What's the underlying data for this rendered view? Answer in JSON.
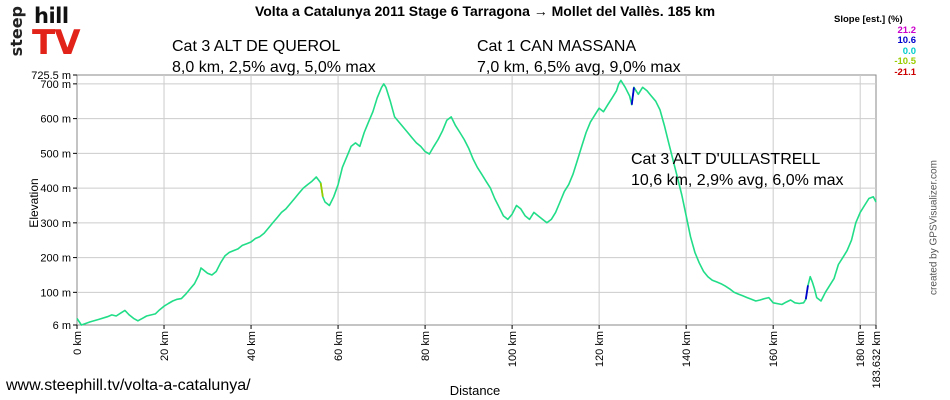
{
  "chart_data": {
    "type": "line",
    "title": "Volta a Catalunya 2011 Stage 6  Tarragona → Mollet del Vallès. 185 km",
    "xlabel": "Distance",
    "ylabel": "Elevation",
    "xlim": [
      0,
      183.632
    ],
    "ylim": [
      6,
      725.5
    ],
    "x_tick_labels": [
      "0 km",
      "20 km",
      "40 km",
      "60 km",
      "80 km",
      "100 km",
      "120 km",
      "140 km",
      "160 km",
      "180 km",
      "183.632 km"
    ],
    "y_tick_labels": [
      "725.5 m",
      "700 m",
      "600 m",
      "500 m",
      "400 m",
      "300 m",
      "200 m",
      "100 m",
      "6 m"
    ],
    "grid": true,
    "legend_position": "top-right",
    "legend": {
      "title": "Slope [est.] (%)",
      "entries": [
        {
          "label": "21.2",
          "color": "#cc00cc"
        },
        {
          "label": "10.6",
          "color": "#0000cc"
        },
        {
          "label": "0.0",
          "color": "#00cccc"
        },
        {
          "label": "-10.5",
          "color": "#99cc00"
        },
        {
          "label": "-21.1",
          "color": "#cc0000"
        }
      ]
    },
    "series": [
      {
        "points": [
          [
            0,
            25
          ],
          [
            1,
            6
          ],
          [
            3,
            15
          ],
          [
            5,
            22
          ],
          [
            7,
            30
          ],
          [
            8,
            35
          ],
          [
            9,
            32
          ],
          [
            10,
            40
          ],
          [
            11,
            48
          ],
          [
            12,
            35
          ],
          [
            13,
            25
          ],
          [
            14,
            18
          ],
          [
            15,
            25
          ],
          [
            16,
            32
          ],
          [
            18,
            38
          ],
          [
            19,
            50
          ],
          [
            20,
            60
          ],
          [
            21,
            68
          ],
          [
            22,
            75
          ],
          [
            23,
            80
          ],
          [
            24,
            82
          ],
          [
            25,
            95
          ],
          [
            26,
            110
          ],
          [
            27,
            125
          ],
          [
            28,
            150
          ],
          [
            28.5,
            170
          ],
          [
            29,
            165
          ],
          [
            30,
            155
          ],
          [
            31,
            150
          ],
          [
            32,
            160
          ],
          [
            33,
            185
          ],
          [
            34,
            205
          ],
          [
            35,
            215
          ],
          [
            36,
            220
          ],
          [
            37,
            225
          ],
          [
            38,
            235
          ],
          [
            39,
            240
          ],
          [
            40,
            245
          ],
          [
            41,
            255
          ],
          [
            42,
            260
          ],
          [
            43,
            270
          ],
          [
            44,
            285
          ],
          [
            45,
            300
          ],
          [
            46,
            315
          ],
          [
            47,
            330
          ],
          [
            48,
            340
          ],
          [
            49,
            355
          ],
          [
            50,
            370
          ],
          [
            51,
            385
          ],
          [
            52,
            400
          ],
          [
            53,
            410
          ],
          [
            54,
            420
          ],
          [
            55,
            432
          ],
          [
            56,
            415
          ],
          [
            56.5,
            375
          ],
          [
            57,
            360
          ],
          [
            58,
            350
          ],
          [
            59,
            375
          ],
          [
            60,
            410
          ],
          [
            61,
            460
          ],
          [
            62,
            490
          ],
          [
            63,
            520
          ],
          [
            64,
            530
          ],
          [
            65,
            520
          ],
          [
            66,
            560
          ],
          [
            67,
            590
          ],
          [
            68,
            620
          ],
          [
            69,
            660
          ],
          [
            70,
            690
          ],
          [
            70.5,
            700
          ],
          [
            71,
            690
          ],
          [
            72,
            650
          ],
          [
            73,
            605
          ],
          [
            74,
            590
          ],
          [
            75,
            575
          ],
          [
            76,
            560
          ],
          [
            77,
            545
          ],
          [
            78,
            530
          ],
          [
            79,
            520
          ],
          [
            80,
            505
          ],
          [
            81,
            498
          ],
          [
            82,
            520
          ],
          [
            83,
            540
          ],
          [
            84,
            565
          ],
          [
            85,
            595
          ],
          [
            86,
            605
          ],
          [
            87,
            580
          ],
          [
            88,
            560
          ],
          [
            89,
            540
          ],
          [
            90,
            515
          ],
          [
            91,
            485
          ],
          [
            92,
            460
          ],
          [
            93,
            440
          ],
          [
            94,
            420
          ],
          [
            95,
            400
          ],
          [
            96,
            370
          ],
          [
            97,
            345
          ],
          [
            98,
            320
          ],
          [
            99,
            310
          ],
          [
            100,
            325
          ],
          [
            101,
            350
          ],
          [
            102,
            340
          ],
          [
            103,
            320
          ],
          [
            104,
            310
          ],
          [
            105,
            330
          ],
          [
            106,
            320
          ],
          [
            107,
            310
          ],
          [
            108,
            300
          ],
          [
            109,
            310
          ],
          [
            110,
            330
          ],
          [
            111,
            360
          ],
          [
            112,
            390
          ],
          [
            113,
            410
          ],
          [
            114,
            440
          ],
          [
            115,
            480
          ],
          [
            116,
            520
          ],
          [
            117,
            560
          ],
          [
            118,
            590
          ],
          [
            119,
            610
          ],
          [
            120,
            630
          ],
          [
            121,
            620
          ],
          [
            122,
            640
          ],
          [
            123,
            660
          ],
          [
            124,
            680
          ],
          [
            124.5,
            700
          ],
          [
            125,
            710
          ],
          [
            126,
            690
          ],
          [
            127,
            665
          ],
          [
            127.5,
            640
          ],
          [
            128,
            690
          ],
          [
            128.5,
            680
          ],
          [
            129,
            670
          ],
          [
            130,
            690
          ],
          [
            131,
            680
          ],
          [
            132,
            665
          ],
          [
            133,
            650
          ],
          [
            134,
            625
          ],
          [
            135,
            580
          ],
          [
            136,
            530
          ],
          [
            137,
            480
          ],
          [
            138,
            430
          ],
          [
            139,
            380
          ],
          [
            140,
            320
          ],
          [
            141,
            260
          ],
          [
            142,
            215
          ],
          [
            143,
            185
          ],
          [
            144,
            160
          ],
          [
            145,
            145
          ],
          [
            146,
            135
          ],
          [
            147,
            130
          ],
          [
            148,
            125
          ],
          [
            149,
            118
          ],
          [
            150,
            110
          ],
          [
            151,
            100
          ],
          [
            152,
            95
          ],
          [
            153,
            90
          ],
          [
            154,
            85
          ],
          [
            155,
            80
          ],
          [
            156,
            75
          ],
          [
            157,
            78
          ],
          [
            158,
            82
          ],
          [
            159,
            85
          ],
          [
            160,
            70
          ],
          [
            162,
            65
          ],
          [
            163,
            72
          ],
          [
            164,
            78
          ],
          [
            165,
            70
          ],
          [
            166,
            68
          ],
          [
            167,
            70
          ],
          [
            167.5,
            80
          ],
          [
            168,
            120
          ],
          [
            168.5,
            145
          ],
          [
            169,
            130
          ],
          [
            169.5,
            110
          ],
          [
            170,
            85
          ],
          [
            171,
            75
          ],
          [
            172,
            100
          ],
          [
            173,
            120
          ],
          [
            174,
            140
          ],
          [
            175,
            180
          ],
          [
            176,
            200
          ],
          [
            177,
            220
          ],
          [
            178,
            250
          ],
          [
            179,
            300
          ],
          [
            180,
            330
          ],
          [
            181,
            350
          ],
          [
            182,
            370
          ],
          [
            183,
            375
          ],
          [
            183.632,
            360
          ]
        ]
      }
    ]
  },
  "annotations": [
    {
      "line1": "Cat 3 ALT DE QUEROL",
      "line2": "8,0 km, 2,5% avg, 5,0% max"
    },
    {
      "line1": "Cat 1 CAN MASSANA",
      "line2": "7,0 km, 6,5% avg, 9,0% max"
    },
    {
      "line1": "Cat 3 ALT D'ULLASTRELL",
      "line2": "10,6 km, 2,9% avg, 6,0% max"
    }
  ],
  "logo": {
    "part1": "steep",
    "part2": "hill",
    "part3": "TV"
  },
  "footer": {
    "url": "www.steephill.tv/volta-a-catalunya/"
  },
  "credit": "created by GPSVisualizer.com",
  "colors": {
    "line": "#22dd88",
    "grid": "#cccccc",
    "logo_tv": "#e2231a"
  }
}
